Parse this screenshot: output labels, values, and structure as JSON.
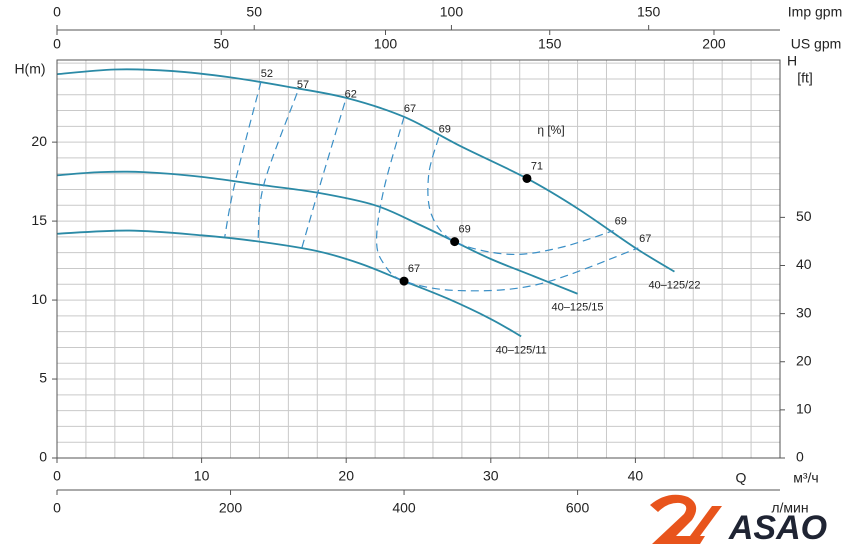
{
  "chart_data": {
    "type": "line",
    "xlabel": "Q",
    "xunit": "м³/ч",
    "xlim": [
      0,
      50
    ],
    "xticks": [
      0,
      10,
      20,
      30,
      40
    ],
    "ylabel": "H(m)",
    "ylim": [
      0,
      25.2
    ],
    "yticks": [
      0,
      5,
      10,
      15,
      20
    ],
    "y2label": "H",
    "y2unit": "[ft]",
    "y2lim": [
      0,
      82.7
    ],
    "y2ticks": [
      0,
      10,
      20,
      30,
      40,
      50
    ],
    "secondary_x_axes": [
      {
        "label": "л/мин",
        "side": "bottom",
        "xlim": [
          0,
          833.3
        ],
        "xticks": [
          0,
          200,
          400,
          600
        ]
      },
      {
        "label": "US gpm",
        "side": "top",
        "xlim": [
          0,
          220.1
        ],
        "xticks": [
          0,
          50,
          100,
          150,
          200
        ]
      },
      {
        "label": "Imp gpm",
        "side": "top",
        "xlim": [
          0,
          183.3
        ],
        "xticks": [
          0,
          50,
          100,
          150
        ]
      }
    ],
    "grid": true,
    "xgrid": [
      0,
      2,
      4,
      6,
      8,
      10,
      12,
      14,
      16,
      18,
      20,
      22,
      24,
      26,
      28,
      30,
      32,
      34,
      36,
      38,
      40,
      42,
      44,
      46,
      48,
      50
    ],
    "ygrid": [
      0,
      1,
      2,
      3,
      4,
      5,
      6,
      7,
      8,
      9,
      10,
      11,
      12,
      13,
      14,
      15,
      16,
      17,
      18,
      19,
      20,
      21,
      22,
      23,
      24,
      25
    ],
    "efficiency_label": "η [%]",
    "series": [
      {
        "name": "40–125/22",
        "kind": "pump",
        "color": "#2b8aa6",
        "x": [
          0,
          4,
          8,
          12,
          16,
          20,
          24,
          28,
          32.5,
          36,
          40,
          42.7
        ],
        "values": [
          24.3,
          24.6,
          24.5,
          24.1,
          23.5,
          22.8,
          21.6,
          19.7,
          17.7,
          15.8,
          13.3,
          11.8
        ]
      },
      {
        "name": "40–125/15",
        "kind": "pump",
        "color": "#2b8aa6",
        "x": [
          0,
          3,
          6,
          10,
          14,
          18,
          22,
          25,
          27.5,
          30,
          33,
          36
        ],
        "values": [
          17.9,
          18.1,
          18.1,
          17.8,
          17.3,
          16.8,
          16.0,
          14.8,
          13.7,
          12.6,
          11.5,
          10.4
        ]
      },
      {
        "name": "40–125/11",
        "kind": "pump",
        "color": "#2b8aa6",
        "x": [
          0,
          5,
          10,
          14,
          18,
          21,
          24,
          27,
          30,
          32.1
        ],
        "values": [
          14.2,
          14.4,
          14.1,
          13.7,
          13.1,
          12.3,
          11.2,
          10.1,
          8.8,
          7.7
        ]
      },
      {
        "name": "52",
        "kind": "efficiency",
        "color": "#3a8fc6",
        "x": [
          14.1,
          12.3,
          11.6
        ],
        "values": [
          23.8,
          17.4,
          14.0
        ]
      },
      {
        "name": "57",
        "kind": "efficiency",
        "color": "#3a8fc6",
        "x": [
          16.6,
          14.3,
          13.9
        ],
        "values": [
          23.1,
          17.3,
          13.7
        ]
      },
      {
        "name": "62",
        "kind": "efficiency",
        "color": "#3a8fc6",
        "x": [
          19.9,
          18.1,
          16.9
        ],
        "values": [
          22.5,
          17.0,
          13.2
        ]
      },
      {
        "name": "67",
        "kind": "efficiency",
        "label_both_ends": true,
        "color": "#3a8fc6",
        "x": [
          24.0,
          22.6,
          22.1,
          22.6,
          24.0,
          27.8,
          33.3,
          40.2
        ],
        "values": [
          21.6,
          17.0,
          13.8,
          12.3,
          11.2,
          10.6,
          11.0,
          13.3
        ]
      },
      {
        "name": "69",
        "kind": "efficiency",
        "label_both_ends": true,
        "color": "#3a8fc6",
        "x": [
          26.4,
          25.7,
          25.9,
          27.5,
          31.2,
          34.7,
          38.5
        ],
        "values": [
          20.3,
          17.9,
          15.4,
          13.7,
          12.9,
          13.3,
          14.4
        ]
      }
    ],
    "points": {
      "color": "#000000",
      "x": [
        32.5,
        27.5,
        24.0
      ],
      "values": [
        17.7,
        13.7,
        11.2
      ],
      "efficiency": [
        71,
        69,
        67
      ]
    }
  },
  "logo": "ASAO"
}
